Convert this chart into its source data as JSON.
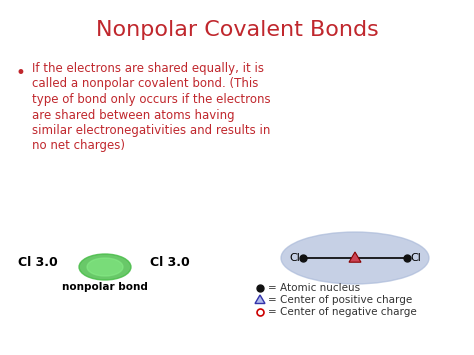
{
  "title": "Nonpolar Covalent Bonds",
  "title_color": "#C0272D",
  "title_fontsize": 16,
  "bg_color": "#FFFFFF",
  "bullet_text_lines": [
    "If the electrons are shared equally, it is",
    "called a nonpolar covalent bond. (This",
    "type of bond only occurs if the electrons",
    "are shared between atoms having",
    "similar electronegativities and results in",
    "no net charges)"
  ],
  "bullet_color": "#C0272D",
  "bullet_fontsize": 8.5,
  "cl_label_left": "Cl 3.0",
  "cl_label_right": "Cl 3.0",
  "cl_label_color": "#000000",
  "cl_label_fontsize": 9,
  "nonpolar_label": "nonpolar bond",
  "nonpolar_label_fontsize": 7.5,
  "ellipse_color": "#A8B8D8",
  "ellipse_alpha": 0.65,
  "bond_line_color": "#000000",
  "atom_color": "#111111",
  "triangle_face": "#CC4455",
  "triangle_edge": "#880000",
  "legend_fontsize": 7.5,
  "legend_color": "#333333",
  "green_blob_color": "#44BB44",
  "green_blob_color2": "#88EE88"
}
